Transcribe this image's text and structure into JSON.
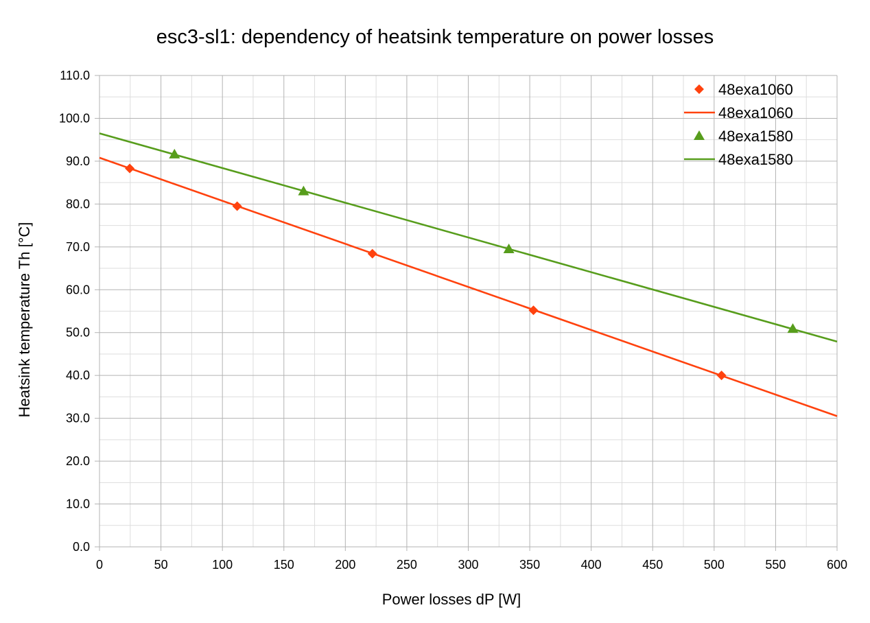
{
  "chart_data": {
    "type": "scatter",
    "title": "esc3-sl1: dependency of heatsink temperature on power losses",
    "xlabel": "Power losses dP [W]",
    "ylabel": "Heatsink temperature Th [°C]",
    "xlim": [
      0,
      600
    ],
    "ylim": [
      0,
      110
    ],
    "x_ticks": [
      0,
      50,
      100,
      150,
      200,
      250,
      300,
      350,
      400,
      450,
      500,
      550,
      600
    ],
    "x_tick_labels": [
      "0",
      "50",
      "100",
      "150",
      "200",
      "250",
      "300",
      "350",
      "400",
      "450",
      "500",
      "550",
      "600"
    ],
    "y_ticks": [
      0,
      10,
      20,
      30,
      40,
      50,
      60,
      70,
      80,
      90,
      100,
      110
    ],
    "y_tick_labels": [
      "0.0",
      "10.0",
      "20.0",
      "30.0",
      "40.0",
      "50.0",
      "60.0",
      "70.0",
      "80.0",
      "90.0",
      "100.0",
      "110.0"
    ],
    "x_minor_step": 25,
    "y_minor_step": 5,
    "grid": true,
    "legend_position": "top-right",
    "series": [
      {
        "name": "48exa1060",
        "kind": "points",
        "marker": "diamond",
        "color": "#ff420e",
        "x": [
          24.6,
          112,
          222,
          353,
          506
        ],
        "y": [
          88.3,
          79.5,
          68.4,
          55.2,
          40.0
        ]
      },
      {
        "name": "48exa1060",
        "kind": "trendline",
        "color": "#ff420e",
        "x": [
          0,
          600
        ],
        "y": [
          90.8,
          30.5
        ]
      },
      {
        "name": "48exa1580",
        "kind": "points",
        "marker": "triangle",
        "color": "#579d1c",
        "x": [
          61,
          166,
          333,
          564
        ],
        "y": [
          91.6,
          83.0,
          69.5,
          50.9
        ]
      },
      {
        "name": "48exa1580",
        "kind": "trendline",
        "color": "#579d1c",
        "x": [
          0,
          600
        ],
        "y": [
          96.5,
          47.9
        ]
      }
    ]
  }
}
